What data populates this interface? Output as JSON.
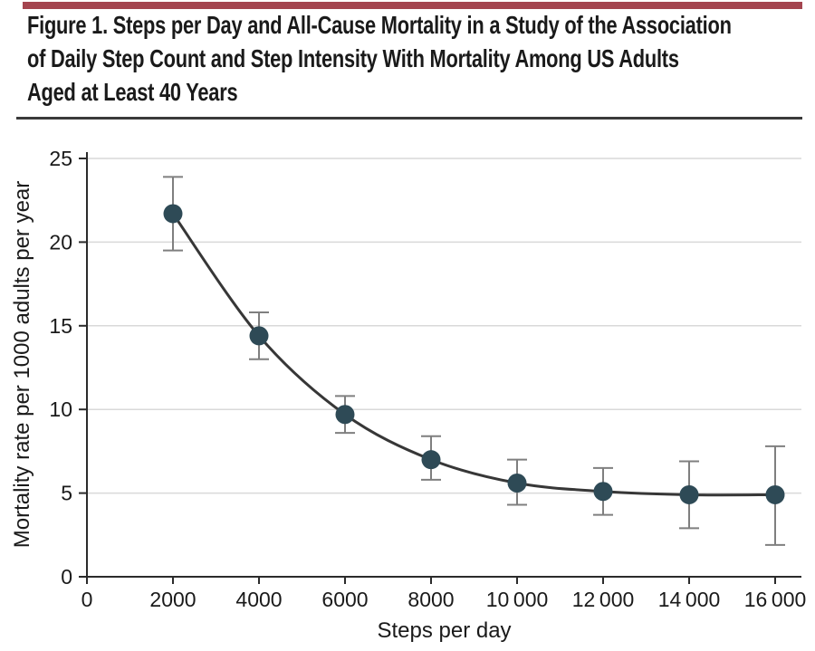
{
  "header": {
    "title_lines": [
      "Figure 1. Steps per Day and All-Cause Mortality in a Study of the Association",
      "of Daily Step Count and Step Intensity With Mortality Among US Adults",
      "Aged at Least 40 Years"
    ]
  },
  "chart_data": {
    "type": "line",
    "title": "Figure 1. Steps per Day and All-Cause Mortality in a Study of the Association of Daily Step Count and Step Intensity With Mortality Among US Adults Aged at Least 40 Years",
    "xlabel": "Steps per day",
    "ylabel": "Mortality rate per 1000 adults per year",
    "x": [
      2000,
      4000,
      6000,
      8000,
      10000,
      12000,
      14000,
      16000
    ],
    "y": [
      21.7,
      14.4,
      9.7,
      7.0,
      5.6,
      5.1,
      4.9,
      4.9
    ],
    "ci_low": [
      19.5,
      13.0,
      8.6,
      5.8,
      4.3,
      3.7,
      2.9,
      1.9
    ],
    "ci_high": [
      23.9,
      15.8,
      10.8,
      8.4,
      7.0,
      6.5,
      6.9,
      7.8
    ],
    "error_bars": true,
    "grid": true,
    "legend": false,
    "xlim": [
      0,
      16600
    ],
    "ylim": [
      0,
      25
    ],
    "xticks": {
      "values": [
        0,
        2000,
        4000,
        6000,
        8000,
        10000,
        12000,
        14000,
        16000
      ],
      "labels": [
        "0",
        "2000",
        "4000",
        "6000",
        "8000",
        "10 000",
        "12 000",
        "14 000",
        "16 000"
      ]
    },
    "yticks": {
      "values": [
        25,
        20,
        15,
        10,
        5,
        0
      ],
      "labels": [
        "25",
        "20",
        "15",
        "10",
        "5",
        "0"
      ]
    }
  },
  "colors": {
    "accent_bar": "#a4454f",
    "separator": "#3a3a3a",
    "point": "#2e4a56",
    "line": "#373737",
    "error_bar": "#7f7f7f",
    "grid": "#d9d9d9",
    "axis": "#2b2b2b",
    "text": "#1a1a1a"
  }
}
